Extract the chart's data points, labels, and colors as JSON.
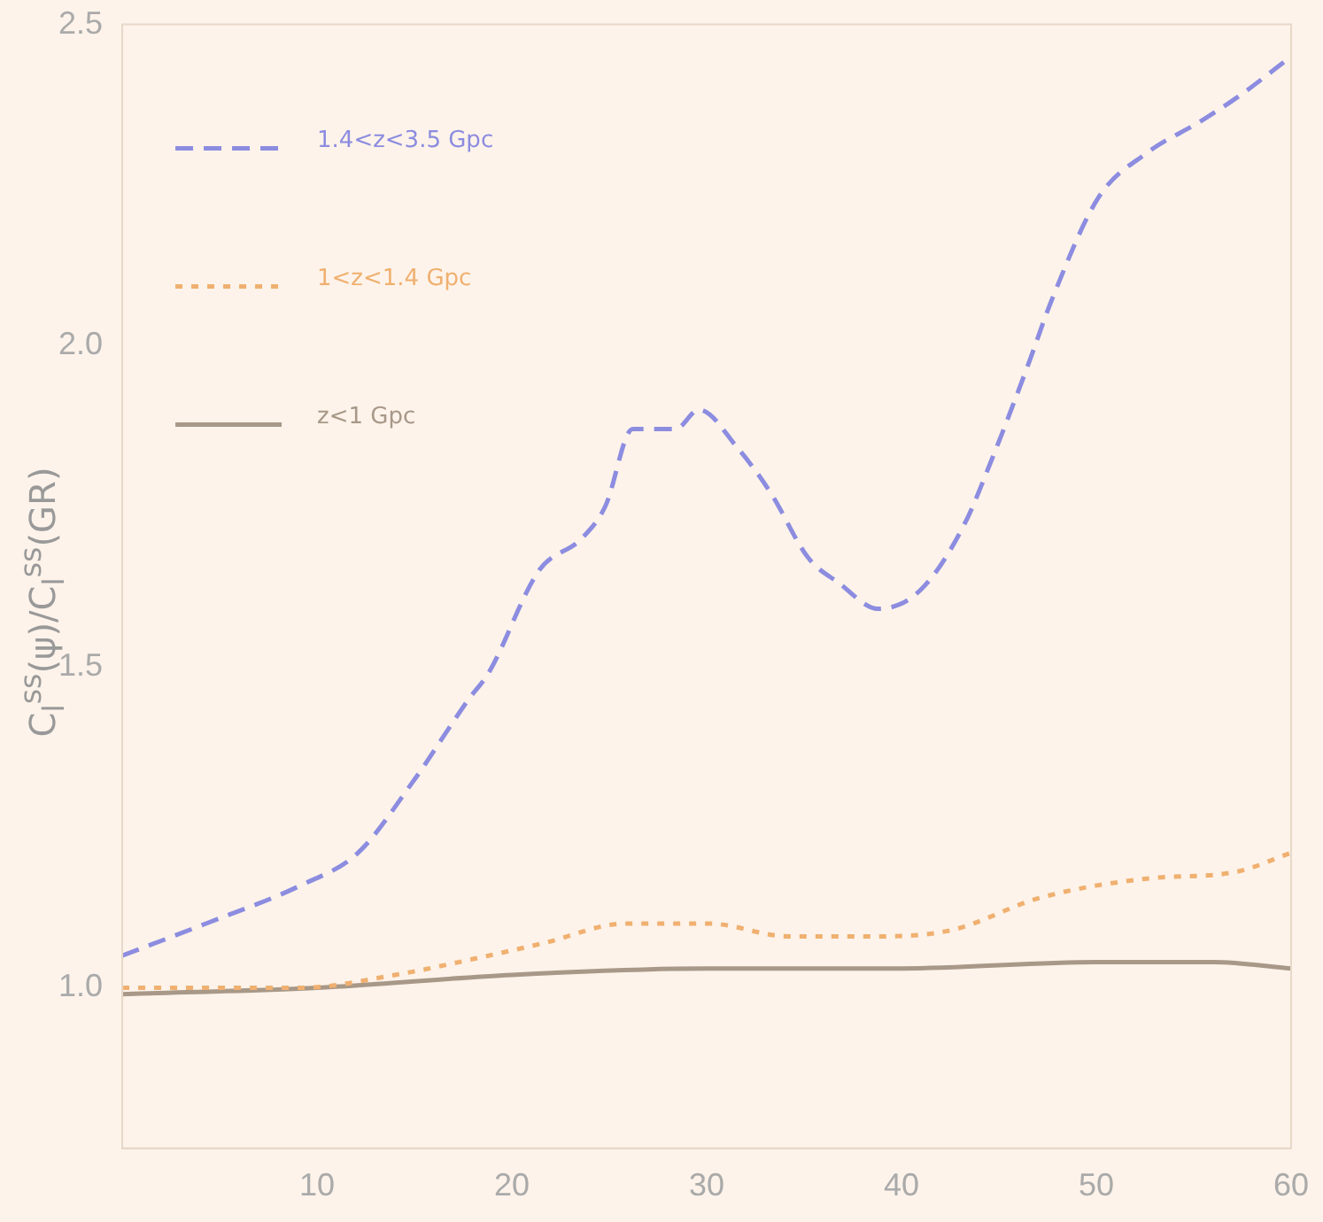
{
  "chart_data": {
    "type": "line",
    "ylabel": "C$_{l}$$^{ss}$(ψ)/C$_{l}$$^{ss}$(GR)",
    "xlim": [
      0,
      60
    ],
    "xticks": [
      10,
      20,
      30,
      40,
      50,
      60
    ],
    "ylim": [
      0.75,
      2.5
    ],
    "yticks": [
      {
        "value": 1,
        "label": "1.0"
      },
      {
        "value": 1.5,
        "label": "1.5"
      },
      {
        "value": 2,
        "label": "2.0"
      },
      {
        "value": 2.5,
        "label": "2.5"
      }
    ],
    "grid": false,
    "legend": "top left",
    "marker": "none",
    "series": [
      {
        "name": "1.4<z<3.5 Gpc",
        "color": "#8c8ce0",
        "line_style": "dashed",
        "x": [
          0,
          4.3,
          9.2,
          12.1,
          14.9,
          17.8,
          18.8,
          21.4,
          23.6,
          24.8,
          26.2,
          28.4,
          29.6,
          31.6,
          33.3,
          35.2,
          36.8,
          38.8,
          41.0,
          43.2,
          44.6,
          46.5,
          47.7,
          50.1,
          52.6,
          55.4,
          57.4,
          60
        ],
        "values": [
          1.05,
          1.1,
          1.16,
          1.21,
          1.32,
          1.45,
          1.49,
          1.65,
          1.7,
          1.75,
          1.87,
          1.87,
          1.9,
          1.84,
          1.77,
          1.67,
          1.63,
          1.59,
          1.62,
          1.72,
          1.82,
          1.97,
          2.07,
          2.23,
          2.3,
          2.35,
          2.39,
          2.45
        ]
      },
      {
        "name": "1<z<1.4 Gpc",
        "color": "#f0b070",
        "line_style": "dotted",
        "x": [
          0,
          9.2,
          14,
          18.8,
          21.7,
          25.8,
          30.1,
          34.2,
          38.8,
          42.6,
          47.1,
          52.6,
          57.1,
          60
        ],
        "values": [
          1.0,
          1.0,
          1.02,
          1.05,
          1.07,
          1.1,
          1.1,
          1.08,
          1.08,
          1.09,
          1.14,
          1.17,
          1.18,
          1.21
        ]
      },
      {
        "name": "z<1 Gpc",
        "color": "#a89888",
        "line_style": "solid",
        "x": [
          0,
          10,
          20,
          30,
          40,
          50,
          56,
          60
        ],
        "values": [
          0.99,
          1.0,
          1.02,
          1.03,
          1.03,
          1.04,
          1.04,
          1.03
        ]
      }
    ]
  }
}
